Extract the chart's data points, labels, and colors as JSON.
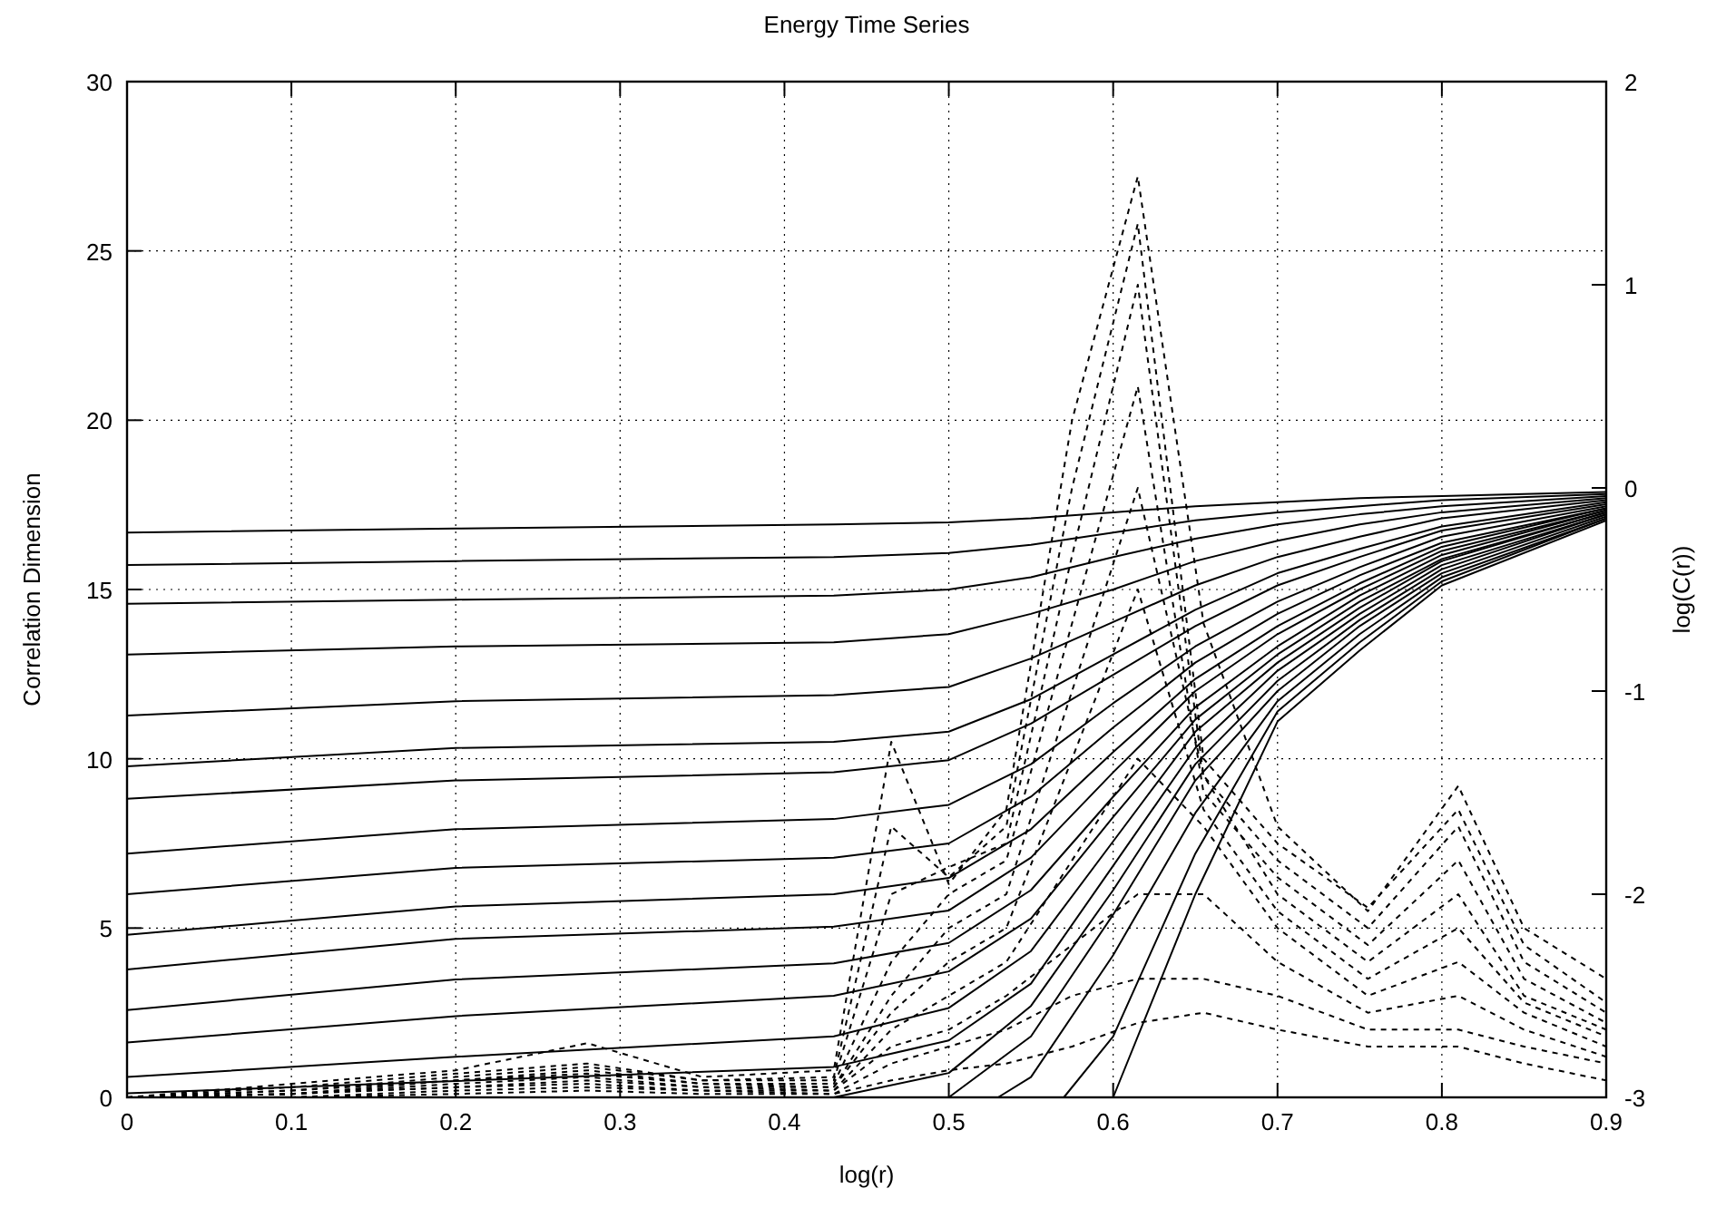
{
  "chart_data": {
    "type": "line",
    "title": "Energy Time Series",
    "xlabel": "log(r)",
    "ylabel": "Correlation Dimension",
    "y2label": "log(C(r))",
    "xlim": [
      0,
      0.9
    ],
    "xticks": [
      0,
      0.1,
      0.2,
      0.3,
      0.4,
      0.5,
      0.6,
      0.7,
      0.8,
      0.9
    ],
    "ylim": [
      0,
      30
    ],
    "yticks": [
      0,
      5,
      10,
      15,
      20,
      25,
      30
    ],
    "y2lim": [
      -3,
      2
    ],
    "y2ticks": [
      -3,
      -2,
      -1,
      0,
      1,
      2
    ],
    "grid": true,
    "series": [
      {
        "axis": "y2",
        "line_style": "solid",
        "color": "#000000",
        "x": [
          0,
          0.2,
          0.43,
          0.5,
          0.55,
          0.6,
          0.65,
          0.7,
          0.75,
          0.8,
          0.9
        ],
        "values": [
          -0.22,
          -0.2,
          -0.18,
          -0.17,
          -0.15,
          -0.12,
          -0.09,
          -0.07,
          -0.05,
          -0.04,
          -0.02
        ]
      },
      {
        "axis": "y2",
        "line_style": "solid",
        "color": "#000000",
        "x": [
          0,
          0.2,
          0.43,
          0.5,
          0.55,
          0.6,
          0.65,
          0.7,
          0.75,
          0.8,
          0.9
        ],
        "values": [
          -0.38,
          -0.36,
          -0.34,
          -0.32,
          -0.28,
          -0.22,
          -0.16,
          -0.12,
          -0.09,
          -0.06,
          -0.03
        ]
      },
      {
        "axis": "y2",
        "line_style": "solid",
        "color": "#000000",
        "x": [
          0,
          0.2,
          0.43,
          0.5,
          0.55,
          0.6,
          0.65,
          0.7,
          0.75,
          0.8,
          0.9
        ],
        "values": [
          -0.57,
          -0.55,
          -0.53,
          -0.5,
          -0.44,
          -0.34,
          -0.25,
          -0.18,
          -0.13,
          -0.09,
          -0.04
        ]
      },
      {
        "axis": "y2",
        "line_style": "solid",
        "color": "#000000",
        "x": [
          0,
          0.2,
          0.43,
          0.5,
          0.55,
          0.6,
          0.65,
          0.7,
          0.75,
          0.8,
          0.9
        ],
        "values": [
          -0.82,
          -0.78,
          -0.76,
          -0.72,
          -0.62,
          -0.5,
          -0.36,
          -0.26,
          -0.18,
          -0.12,
          -0.05
        ]
      },
      {
        "axis": "y2",
        "line_style": "solid",
        "color": "#000000",
        "x": [
          0,
          0.2,
          0.43,
          0.5,
          0.55,
          0.6,
          0.65,
          0.7,
          0.75,
          0.8,
          0.9
        ],
        "values": [
          -1.12,
          -1.05,
          -1.02,
          -0.98,
          -0.84,
          -0.66,
          -0.48,
          -0.34,
          -0.24,
          -0.15,
          -0.06
        ]
      },
      {
        "axis": "y2",
        "line_style": "solid",
        "color": "#000000",
        "x": [
          0,
          0.2,
          0.43,
          0.5,
          0.55,
          0.6,
          0.65,
          0.7,
          0.75,
          0.8,
          0.9
        ],
        "values": [
          -1.37,
          -1.28,
          -1.25,
          -1.2,
          -1.04,
          -0.82,
          -0.6,
          -0.42,
          -0.3,
          -0.19,
          -0.07
        ]
      },
      {
        "axis": "y2",
        "line_style": "solid",
        "color": "#000000",
        "x": [
          0,
          0.2,
          0.43,
          0.5,
          0.55,
          0.6,
          0.65,
          0.7,
          0.75,
          0.8,
          0.9
        ],
        "values": [
          -1.53,
          -1.44,
          -1.4,
          -1.34,
          -1.16,
          -0.92,
          -0.68,
          -0.48,
          -0.34,
          -0.21,
          -0.08
        ]
      },
      {
        "axis": "y2",
        "line_style": "solid",
        "color": "#000000",
        "x": [
          0,
          0.2,
          0.43,
          0.5,
          0.55,
          0.6,
          0.65,
          0.7,
          0.75,
          0.8,
          0.9
        ],
        "values": [
          -1.8,
          -1.68,
          -1.63,
          -1.56,
          -1.36,
          -1.06,
          -0.78,
          -0.56,
          -0.39,
          -0.24,
          -0.09
        ]
      },
      {
        "axis": "y2",
        "line_style": "solid",
        "color": "#000000",
        "x": [
          0,
          0.2,
          0.43,
          0.5,
          0.55,
          0.6,
          0.65,
          0.7,
          0.75,
          0.8,
          0.9
        ],
        "values": [
          -2.0,
          -1.87,
          -1.82,
          -1.75,
          -1.52,
          -1.18,
          -0.86,
          -0.62,
          -0.43,
          -0.27,
          -0.1
        ]
      },
      {
        "axis": "y2",
        "line_style": "solid",
        "color": "#000000",
        "x": [
          0,
          0.2,
          0.43,
          0.5,
          0.55,
          0.6,
          0.65,
          0.7,
          0.75,
          0.8,
          0.9
        ],
        "values": [
          -2.2,
          -2.06,
          -2.0,
          -1.92,
          -1.68,
          -1.3,
          -0.94,
          -0.68,
          -0.47,
          -0.29,
          -0.1
        ]
      },
      {
        "axis": "y2",
        "line_style": "solid",
        "color": "#000000",
        "x": [
          0,
          0.2,
          0.43,
          0.5,
          0.55,
          0.6,
          0.65,
          0.7,
          0.75,
          0.8,
          0.9
        ],
        "values": [
          -2.37,
          -2.22,
          -2.16,
          -2.08,
          -1.82,
          -1.4,
          -1.0,
          -0.72,
          -0.5,
          -0.31,
          -0.11
        ]
      },
      {
        "axis": "y2",
        "line_style": "solid",
        "color": "#000000",
        "x": [
          0,
          0.2,
          0.43,
          0.5,
          0.55,
          0.6,
          0.65,
          0.7,
          0.75,
          0.8,
          0.9
        ],
        "values": [
          -2.57,
          -2.42,
          -2.34,
          -2.24,
          -1.98,
          -1.52,
          -1.08,
          -0.78,
          -0.53,
          -0.33,
          -0.11
        ]
      },
      {
        "axis": "y2",
        "line_style": "solid",
        "color": "#000000",
        "x": [
          0,
          0.2,
          0.43,
          0.5,
          0.55,
          0.6,
          0.65,
          0.7,
          0.75,
          0.8,
          0.9
        ],
        "values": [
          -2.73,
          -2.6,
          -2.5,
          -2.38,
          -2.12,
          -1.62,
          -1.14,
          -0.82,
          -0.56,
          -0.35,
          -0.12
        ]
      },
      {
        "axis": "y2",
        "line_style": "solid",
        "color": "#000000",
        "x": [
          0,
          0.2,
          0.43,
          0.5,
          0.55,
          0.6,
          0.65,
          0.7,
          0.75,
          0.8,
          0.9
        ],
        "values": [
          -2.9,
          -2.8,
          -2.7,
          -2.56,
          -2.28,
          -1.74,
          -1.2,
          -0.86,
          -0.59,
          -0.36,
          -0.12
        ]
      },
      {
        "axis": "y2",
        "line_style": "solid",
        "color": "#000000",
        "x": [
          0,
          0.2,
          0.43,
          0.5,
          0.55,
          0.6,
          0.65,
          0.7,
          0.75,
          0.8,
          0.9
        ],
        "values": [
          -2.98,
          -2.92,
          -2.85,
          -2.72,
          -2.44,
          -1.86,
          -1.28,
          -0.9,
          -0.62,
          -0.38,
          -0.13
        ]
      },
      {
        "axis": "y2",
        "line_style": "solid",
        "color": "#000000",
        "x": [
          0.43,
          0.5,
          0.55,
          0.6,
          0.65,
          0.7,
          0.75,
          0.8,
          0.9
        ],
        "values": [
          -3.0,
          -2.88,
          -2.55,
          -1.98,
          -1.36,
          -0.95,
          -0.65,
          -0.4,
          -0.13
        ]
      },
      {
        "axis": "y2",
        "line_style": "solid",
        "color": "#000000",
        "x": [
          0.5,
          0.55,
          0.6,
          0.65,
          0.7,
          0.75,
          0.8,
          0.9
        ],
        "values": [
          -3.0,
          -2.7,
          -2.1,
          -1.44,
          -1.0,
          -0.68,
          -0.42,
          -0.14
        ]
      },
      {
        "axis": "y2",
        "line_style": "solid",
        "color": "#000000",
        "x": [
          0.53,
          0.55,
          0.6,
          0.65,
          0.7,
          0.75,
          0.8,
          0.9
        ],
        "values": [
          -3.0,
          -2.9,
          -2.3,
          -1.6,
          -1.05,
          -0.72,
          -0.44,
          -0.15
        ]
      },
      {
        "axis": "y2",
        "line_style": "solid",
        "color": "#000000",
        "x": [
          0.57,
          0.6,
          0.65,
          0.7,
          0.75,
          0.8,
          0.9
        ],
        "values": [
          -3.0,
          -2.7,
          -1.8,
          -1.1,
          -0.76,
          -0.46,
          -0.15
        ]
      },
      {
        "axis": "y2",
        "line_style": "solid",
        "color": "#000000",
        "x": [
          0.6,
          0.65,
          0.7,
          0.75,
          0.8,
          0.9
        ],
        "values": [
          -3.0,
          -2.0,
          -1.15,
          -0.8,
          -0.48,
          -0.16
        ]
      },
      {
        "line_style": "dashed",
        "color": "#000000",
        "x": [
          0,
          0.1,
          0.2,
          0.28,
          0.35,
          0.43,
          0.465,
          0.5,
          0.535,
          0.575,
          0.615,
          0.655,
          0.7,
          0.755,
          0.81,
          0.85,
          0.9
        ],
        "values": [
          0,
          0.4,
          0.8,
          1.6,
          0.6,
          0.8,
          10.5,
          6.3,
          8.5,
          20,
          27.2,
          14,
          8,
          5.5,
          9.2,
          5,
          3.5
        ]
      },
      {
        "line_style": "dashed",
        "color": "#000000",
        "x": [
          0,
          0.1,
          0.2,
          0.28,
          0.35,
          0.43,
          0.465,
          0.5,
          0.535,
          0.575,
          0.615,
          0.655,
          0.7,
          0.755,
          0.81,
          0.85,
          0.9
        ],
        "values": [
          0,
          0.3,
          0.7,
          1.0,
          0.5,
          0.6,
          8,
          6.5,
          8,
          18,
          25.8,
          10,
          7.5,
          5.6,
          8.5,
          4.5,
          2.8
        ]
      },
      {
        "line_style": "dashed",
        "color": "#000000",
        "x": [
          0,
          0.1,
          0.2,
          0.28,
          0.35,
          0.43,
          0.465,
          0.5,
          0.535,
          0.575,
          0.615,
          0.655,
          0.7,
          0.755,
          0.81,
          0.85,
          0.9
        ],
        "values": [
          0,
          0.2,
          0.6,
          0.9,
          0.5,
          0.5,
          6,
          6.8,
          7.5,
          16,
          24,
          9.5,
          7,
          5,
          8,
          4,
          2.5
        ]
      },
      {
        "line_style": "dashed",
        "color": "#000000",
        "x": [
          0,
          0.1,
          0.2,
          0.28,
          0.35,
          0.43,
          0.465,
          0.5,
          0.535,
          0.575,
          0.615,
          0.655,
          0.7,
          0.755,
          0.81,
          0.85,
          0.9
        ],
        "values": [
          0,
          0.2,
          0.5,
          0.8,
          0.4,
          0.4,
          4,
          6,
          7,
          14,
          21,
          9,
          6.5,
          4.5,
          7,
          3.5,
          2.2
        ]
      },
      {
        "line_style": "dashed",
        "color": "#000000",
        "x": [
          0,
          0.1,
          0.2,
          0.28,
          0.35,
          0.43,
          0.465,
          0.5,
          0.535,
          0.575,
          0.615,
          0.655,
          0.7,
          0.755,
          0.81,
          0.85,
          0.9
        ],
        "values": [
          0,
          0.1,
          0.5,
          0.7,
          0.4,
          0.3,
          3,
          5,
          6,
          12,
          18,
          9.5,
          6,
          4,
          6,
          3,
          2
        ]
      },
      {
        "line_style": "dashed",
        "color": "#000000",
        "x": [
          0,
          0.1,
          0.2,
          0.28,
          0.35,
          0.43,
          0.465,
          0.5,
          0.535,
          0.575,
          0.615,
          0.655,
          0.7,
          0.755,
          0.81,
          0.85,
          0.9
        ],
        "values": [
          0,
          0.1,
          0.4,
          0.6,
          0.3,
          0.3,
          2.5,
          4,
          5,
          10,
          15,
          8.5,
          5.5,
          3.5,
          5,
          2.8,
          1.8
        ]
      },
      {
        "line_style": "dashed",
        "color": "#000000",
        "x": [
          0,
          0.1,
          0.2,
          0.28,
          0.35,
          0.43,
          0.465,
          0.5,
          0.535,
          0.575,
          0.615,
          0.655,
          0.7,
          0.755,
          0.81,
          0.85,
          0.9
        ],
        "values": [
          0,
          0.1,
          0.3,
          0.5,
          0.3,
          0.2,
          2,
          3,
          4,
          7,
          10,
          8,
          5,
          3,
          4,
          2.5,
          1.5
        ]
      },
      {
        "line_style": "dashed",
        "color": "#000000",
        "x": [
          0,
          0.1,
          0.2,
          0.28,
          0.35,
          0.43,
          0.465,
          0.5,
          0.535,
          0.575,
          0.615,
          0.655,
          0.7,
          0.755,
          0.81,
          0.85,
          0.9
        ],
        "values": [
          0,
          0.1,
          0.3,
          0.4,
          0.2,
          0.2,
          1.5,
          2,
          3,
          4.5,
          6,
          6,
          4,
          2.5,
          3,
          2,
          1.2
        ]
      },
      {
        "line_style": "dashed",
        "color": "#000000",
        "x": [
          0,
          0.1,
          0.2,
          0.28,
          0.35,
          0.43,
          0.465,
          0.5,
          0.535,
          0.575,
          0.615,
          0.655,
          0.7,
          0.755,
          0.81,
          0.85,
          0.9
        ],
        "values": [
          0,
          0,
          0.2,
          0.3,
          0.2,
          0.1,
          1,
          1.5,
          2,
          3,
          3.5,
          3.5,
          3,
          2,
          2,
          1.5,
          1
        ]
      },
      {
        "line_style": "dashed",
        "color": "#000000",
        "x": [
          0,
          0.1,
          0.2,
          0.28,
          0.35,
          0.43,
          0.465,
          0.5,
          0.535,
          0.575,
          0.615,
          0.655,
          0.7,
          0.755,
          0.81,
          0.85,
          0.9
        ],
        "values": [
          0,
          0,
          0.1,
          0.2,
          0.1,
          0.1,
          0.5,
          0.8,
          1,
          1.5,
          2.2,
          2.5,
          2,
          1.5,
          1.5,
          1,
          0.5
        ]
      }
    ]
  }
}
